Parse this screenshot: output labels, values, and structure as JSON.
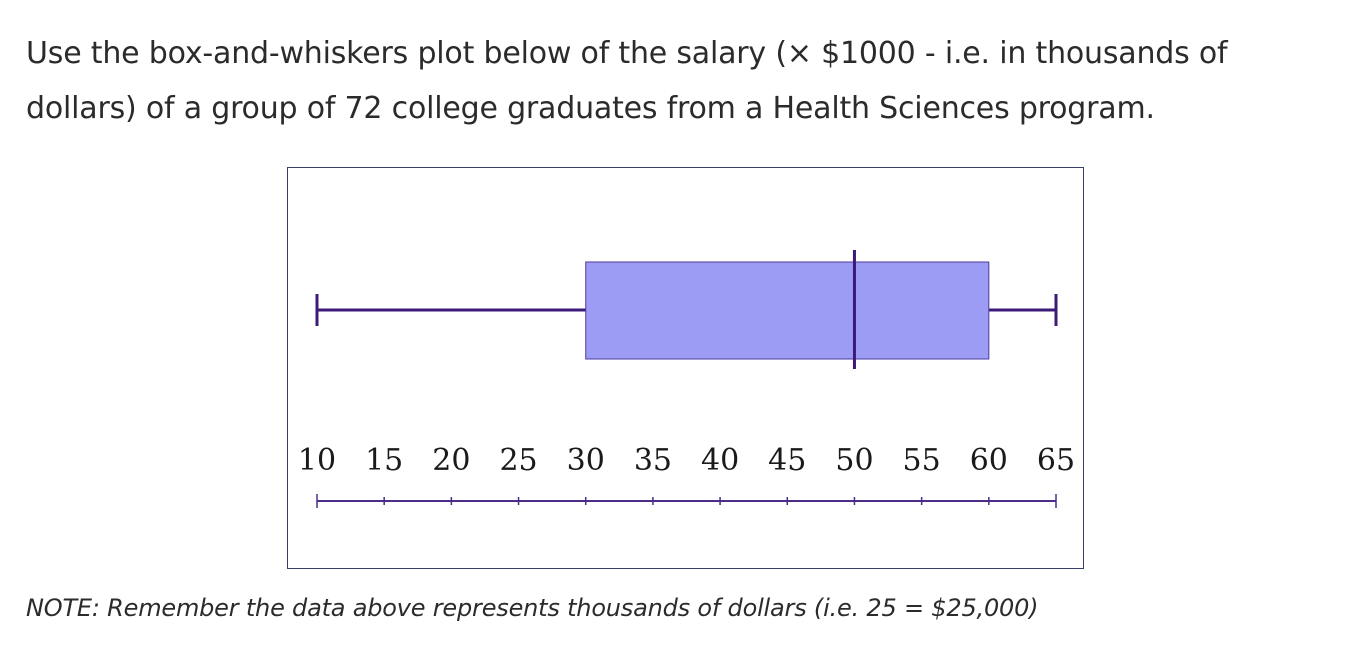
{
  "question": {
    "text": "Use the box-and-whiskers plot below of the salary (× $1000 - i.e. in thousands of dollars) of a group of 72 college graduates from a Health Sciences program."
  },
  "note": {
    "text": "NOTE: Remember the data above represents thousands of dollars (i.e. 25 = $25,000)"
  },
  "chart_data": {
    "type": "box",
    "title": "",
    "xlabel": "",
    "ylabel": "",
    "box": {
      "min": 10,
      "q1": 30,
      "median": 50,
      "q3": 60,
      "max": 65
    },
    "xlim": [
      10,
      65
    ],
    "ticks": [
      10,
      15,
      20,
      25,
      30,
      35,
      40,
      45,
      50,
      55,
      60,
      65
    ],
    "tick_labels": [
      "10",
      "15",
      "20",
      "25",
      "30",
      "35",
      "40",
      "45",
      "50",
      "55",
      "60",
      "65"
    ],
    "colors": {
      "box_fill": "#9d9cf5",
      "box_stroke": "#4b3b9a",
      "whisker": "#3b1a78",
      "axis": "#4b2d8a"
    }
  }
}
